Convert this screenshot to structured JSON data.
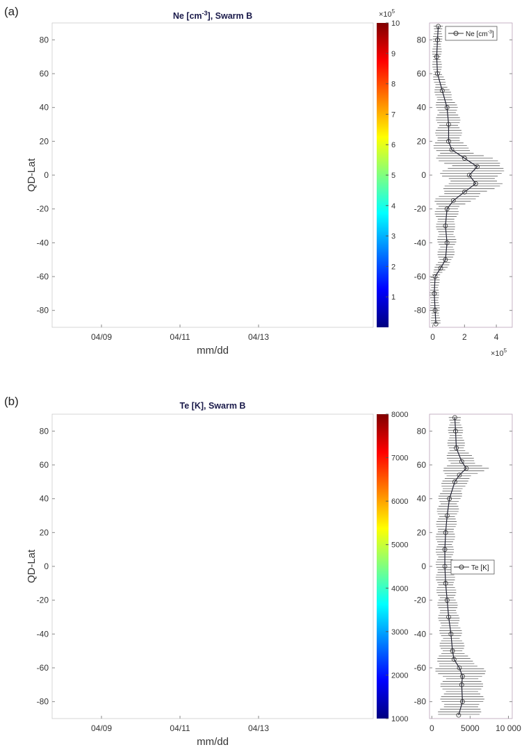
{
  "panels": [
    {
      "label": "(a)",
      "title_main": "Ne [cm",
      "title_sup": "-3",
      "title_rest": "], Swarm B",
      "legend_main": "Ne [cm",
      "legend_sup": "-3",
      "legend_rest": "]",
      "colorbar_exp": "×10",
      "colorbar_exp_sup": "5",
      "profile_exp": "×10",
      "profile_exp_sup": "5"
    },
    {
      "label": "(b)",
      "title_main": "Te [K], Swarm B",
      "legend_main": "Te [K]"
    }
  ],
  "chart_data": [
    {
      "type": "heatmap",
      "panel": "a",
      "title": "Ne [cm-3], Swarm B",
      "xlabel": "mm/dd",
      "ylabel": "QD-Lat",
      "xticks": [
        "04/09",
        "04/11",
        "04/13"
      ],
      "ylim": [
        -90,
        90
      ],
      "yticks": [
        80,
        60,
        40,
        20,
        0,
        -20,
        -40,
        -60,
        -80
      ],
      "colorbar": {
        "range": [
          0,
          10
        ],
        "ticks": [
          1,
          2,
          3,
          4,
          5,
          6,
          7,
          8,
          9,
          10
        ],
        "multiplier": "×10^5",
        "colormap": "jet"
      }
    },
    {
      "type": "line",
      "panel": "a",
      "legend": "Ne [cm-3]",
      "xlim": [
        -0.2,
        5
      ],
      "xticks": [
        0,
        2,
        4
      ],
      "multiplier": "×10^5",
      "ylim": [
        -90,
        90
      ],
      "yticks": [
        80,
        60,
        40,
        20,
        0,
        -20,
        -40,
        -60,
        -80
      ],
      "lat": [
        88,
        80,
        70,
        60,
        50,
        40,
        30,
        20,
        15,
        10,
        5,
        0,
        -5,
        -10,
        -15,
        -20,
        -30,
        -40,
        -50,
        -55,
        -60,
        -70,
        -80,
        -88
      ],
      "mean": [
        0.35,
        0.3,
        0.25,
        0.3,
        0.6,
        0.9,
        1.0,
        1.0,
        1.2,
        2.0,
        2.8,
        2.3,
        2.7,
        2.0,
        1.3,
        0.9,
        0.8,
        0.9,
        0.8,
        0.5,
        0.15,
        0.1,
        0.15,
        0.2
      ],
      "err": [
        0.3,
        0.3,
        0.3,
        0.3,
        0.5,
        0.7,
        0.8,
        0.9,
        1.2,
        1.8,
        2.1,
        1.9,
        1.8,
        1.6,
        1.2,
        0.8,
        0.6,
        0.6,
        0.5,
        0.4,
        0.3,
        0.3,
        0.3,
        0.3
      ]
    },
    {
      "type": "heatmap",
      "panel": "b",
      "title": "Te [K], Swarm B",
      "xlabel": "mm/dd",
      "ylabel": "QD-Lat",
      "xticks": [
        "04/09",
        "04/11",
        "04/13"
      ],
      "ylim": [
        -90,
        90
      ],
      "yticks": [
        80,
        60,
        40,
        20,
        0,
        -20,
        -40,
        -60,
        -80
      ],
      "colorbar": {
        "range": [
          1000,
          8000
        ],
        "ticks": [
          1000,
          2000,
          3000,
          4000,
          5000,
          6000,
          7000,
          8000
        ],
        "colormap": "jet"
      }
    },
    {
      "type": "line",
      "panel": "b",
      "legend": "Te [K]",
      "xlim": [
        -300,
        10500
      ],
      "xticks": [
        0,
        5000,
        10000
      ],
      "xticklabels": [
        "0",
        "5000",
        "10 000"
      ],
      "ylim": [
        -90,
        90
      ],
      "yticks": [
        80,
        60,
        40,
        20,
        0,
        -20,
        -40,
        -60,
        -80
      ],
      "lat": [
        88,
        80,
        70,
        62,
        58,
        54,
        50,
        40,
        30,
        20,
        10,
        0,
        -10,
        -20,
        -30,
        -40,
        -50,
        -55,
        -60,
        -65,
        -70,
        -80,
        -88
      ],
      "mean": [
        3000,
        3100,
        3200,
        3900,
        4500,
        3600,
        3000,
        2300,
        2000,
        1800,
        1700,
        1700,
        1800,
        2000,
        2200,
        2500,
        2700,
        2900,
        3600,
        4000,
        3900,
        4000,
        3500
      ],
      "err": [
        800,
        1000,
        1200,
        2000,
        3000,
        2200,
        1700,
        1500,
        1400,
        1300,
        1200,
        1200,
        1300,
        1300,
        1400,
        1500,
        1700,
        2200,
        3500,
        3000,
        2800,
        2900,
        2800
      ]
    }
  ],
  "colors": {
    "axis": "#888",
    "profile": "#333",
    "legend_border": "#444"
  }
}
